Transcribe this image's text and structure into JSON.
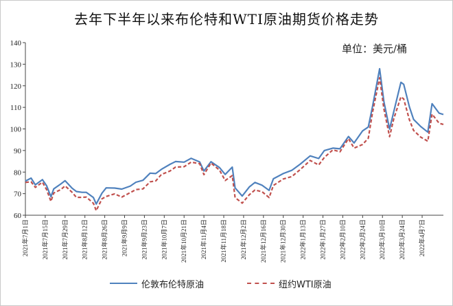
{
  "chart_data": {
    "type": "line",
    "title": "去年下半年以来布伦特和WTI原油期货价格走势",
    "unit": "单位：美元/桶",
    "ylim": [
      60,
      140
    ],
    "yticks": [
      60,
      70,
      80,
      90,
      100,
      110,
      120,
      130,
      140
    ],
    "grid": false,
    "legend_position": "bottom",
    "xlim": [
      "2021-07-01",
      "2022-04-22"
    ],
    "xticks": [
      {
        "date": "2021-07-01",
        "label": "2021年7月1日"
      },
      {
        "date": "2021-07-15",
        "label": "2021年7月15日"
      },
      {
        "date": "2021-07-29",
        "label": "2021年7月29日"
      },
      {
        "date": "2021-08-12",
        "label": "2021年8月12日"
      },
      {
        "date": "2021-08-26",
        "label": "2021年8月26日"
      },
      {
        "date": "2021-09-09",
        "label": "2021年9月9日"
      },
      {
        "date": "2021-09-23",
        "label": "2021年9月23日"
      },
      {
        "date": "2021-10-07",
        "label": "2021年10月7日"
      },
      {
        "date": "2021-10-21",
        "label": "2021年10月21日"
      },
      {
        "date": "2021-11-04",
        "label": "2021年11月4日"
      },
      {
        "date": "2021-11-18",
        "label": "2021年11月18日"
      },
      {
        "date": "2021-12-02",
        "label": "2021年12月2日"
      },
      {
        "date": "2021-12-16",
        "label": "2021年12月16日"
      },
      {
        "date": "2021-12-30",
        "label": "2021年12月30日"
      },
      {
        "date": "2022-01-13",
        "label": "2022年1月13日"
      },
      {
        "date": "2022-01-27",
        "label": "2022年1月27日"
      },
      {
        "date": "2022-02-10",
        "label": "2022年2月10日"
      },
      {
        "date": "2022-02-24",
        "label": "2022年2月24日"
      },
      {
        "date": "2022-03-10",
        "label": "2022年3月10日"
      },
      {
        "date": "2022-03-24",
        "label": "2022年3月24日"
      },
      {
        "date": "2022-04-07",
        "label": "2022年4月7日"
      }
    ],
    "series": [
      {
        "name": "伦敦布伦特原油",
        "color": "#4f81bd",
        "style": "solid",
        "points": [
          [
            "2021-07-01",
            75.8
          ],
          [
            "2021-07-05",
            77.2
          ],
          [
            "2021-07-08",
            74.1
          ],
          [
            "2021-07-13",
            76.5
          ],
          [
            "2021-07-16",
            73.6
          ],
          [
            "2021-07-19",
            68.6
          ],
          [
            "2021-07-21",
            72.2
          ],
          [
            "2021-07-26",
            74.5
          ],
          [
            "2021-07-29",
            76.0
          ],
          [
            "2021-08-03",
            72.5
          ],
          [
            "2021-08-06",
            71.0
          ],
          [
            "2021-08-10",
            70.6
          ],
          [
            "2021-08-13",
            70.6
          ],
          [
            "2021-08-18",
            68.2
          ],
          [
            "2021-08-20",
            65.2
          ],
          [
            "2021-08-24",
            70.2
          ],
          [
            "2021-08-27",
            72.7
          ],
          [
            "2021-09-02",
            72.6
          ],
          [
            "2021-09-07",
            72.1
          ],
          [
            "2021-09-13",
            73.5
          ],
          [
            "2021-09-17",
            75.3
          ],
          [
            "2021-09-22",
            76.2
          ],
          [
            "2021-09-27",
            79.5
          ],
          [
            "2021-10-01",
            79.3
          ],
          [
            "2021-10-05",
            81.3
          ],
          [
            "2021-10-11",
            83.6
          ],
          [
            "2021-10-15",
            84.9
          ],
          [
            "2021-10-21",
            84.6
          ],
          [
            "2021-10-26",
            86.4
          ],
          [
            "2021-11-01",
            84.7
          ],
          [
            "2021-11-04",
            80.5
          ],
          [
            "2021-11-09",
            84.8
          ],
          [
            "2021-11-15",
            82.1
          ],
          [
            "2021-11-19",
            78.9
          ],
          [
            "2021-11-24",
            82.3
          ],
          [
            "2021-11-26",
            72.7
          ],
          [
            "2021-12-01",
            68.9
          ],
          [
            "2021-12-06",
            73.1
          ],
          [
            "2021-12-10",
            75.2
          ],
          [
            "2021-12-15",
            73.9
          ],
          [
            "2021-12-20",
            71.5
          ],
          [
            "2021-12-23",
            76.9
          ],
          [
            "2021-12-30",
            79.3
          ],
          [
            "2022-01-05",
            80.8
          ],
          [
            "2022-01-11",
            83.7
          ],
          [
            "2022-01-18",
            87.5
          ],
          [
            "2022-01-24",
            86.3
          ],
          [
            "2022-01-28",
            90.0
          ],
          [
            "2022-02-03",
            91.1
          ],
          [
            "2022-02-08",
            90.8
          ],
          [
            "2022-02-14",
            96.5
          ],
          [
            "2022-02-18",
            93.5
          ],
          [
            "2022-02-24",
            99.1
          ],
          [
            "2022-02-28",
            100.9
          ],
          [
            "2022-03-03",
            110.5
          ],
          [
            "2022-03-08",
            127.9
          ],
          [
            "2022-03-11",
            112.7
          ],
          [
            "2022-03-15",
            99.9
          ],
          [
            "2022-03-18",
            108.0
          ],
          [
            "2022-03-23",
            121.6
          ],
          [
            "2022-03-25",
            120.7
          ],
          [
            "2022-03-29",
            110.2
          ],
          [
            "2022-04-01",
            104.4
          ],
          [
            "2022-04-06",
            101.1
          ],
          [
            "2022-04-11",
            98.5
          ],
          [
            "2022-04-14",
            111.7
          ],
          [
            "2022-04-19",
            107.3
          ],
          [
            "2022-04-22",
            106.7
          ]
        ]
      },
      {
        "name": "纽约WTI原油",
        "color": "#c0504d",
        "style": "dashed",
        "points": [
          [
            "2021-07-01",
            75.2
          ],
          [
            "2021-07-05",
            75.5
          ],
          [
            "2021-07-08",
            72.9
          ],
          [
            "2021-07-13",
            75.3
          ],
          [
            "2021-07-16",
            71.8
          ],
          [
            "2021-07-19",
            66.4
          ],
          [
            "2021-07-21",
            70.3
          ],
          [
            "2021-07-26",
            71.9
          ],
          [
            "2021-07-29",
            73.6
          ],
          [
            "2021-08-03",
            70.6
          ],
          [
            "2021-08-06",
            68.3
          ],
          [
            "2021-08-10",
            68.3
          ],
          [
            "2021-08-13",
            68.4
          ],
          [
            "2021-08-18",
            65.5
          ],
          [
            "2021-08-20",
            62.1
          ],
          [
            "2021-08-24",
            67.6
          ],
          [
            "2021-08-27",
            68.7
          ],
          [
            "2021-09-02",
            69.9
          ],
          [
            "2021-09-07",
            68.4
          ],
          [
            "2021-09-13",
            70.5
          ],
          [
            "2021-09-17",
            71.9
          ],
          [
            "2021-09-22",
            72.2
          ],
          [
            "2021-09-27",
            75.5
          ],
          [
            "2021-10-01",
            75.9
          ],
          [
            "2021-10-05",
            78.9
          ],
          [
            "2021-10-11",
            80.5
          ],
          [
            "2021-10-15",
            82.3
          ],
          [
            "2021-10-21",
            82.5
          ],
          [
            "2021-10-26",
            84.6
          ],
          [
            "2021-11-01",
            83.9
          ],
          [
            "2021-11-04",
            78.8
          ],
          [
            "2021-11-09",
            84.2
          ],
          [
            "2021-11-15",
            80.9
          ],
          [
            "2021-11-19",
            76.1
          ],
          [
            "2021-11-24",
            78.4
          ],
          [
            "2021-11-26",
            68.2
          ],
          [
            "2021-12-01",
            65.6
          ],
          [
            "2021-12-06",
            69.5
          ],
          [
            "2021-12-10",
            71.7
          ],
          [
            "2021-12-15",
            70.9
          ],
          [
            "2021-12-20",
            68.2
          ],
          [
            "2021-12-23",
            73.8
          ],
          [
            "2021-12-30",
            76.8
          ],
          [
            "2022-01-05",
            77.9
          ],
          [
            "2022-01-11",
            81.2
          ],
          [
            "2022-01-18",
            85.4
          ],
          [
            "2022-01-24",
            83.3
          ],
          [
            "2022-01-28",
            86.8
          ],
          [
            "2022-02-03",
            90.3
          ],
          [
            "2022-02-08",
            89.4
          ],
          [
            "2022-02-14",
            95.5
          ],
          [
            "2022-02-18",
            91.1
          ],
          [
            "2022-02-24",
            92.8
          ],
          [
            "2022-02-28",
            95.7
          ],
          [
            "2022-03-03",
            107.7
          ],
          [
            "2022-03-08",
            123.7
          ],
          [
            "2022-03-11",
            109.3
          ],
          [
            "2022-03-15",
            96.4
          ],
          [
            "2022-03-18",
            104.7
          ],
          [
            "2022-03-23",
            114.9
          ],
          [
            "2022-03-25",
            113.9
          ],
          [
            "2022-03-29",
            104.2
          ],
          [
            "2022-04-01",
            99.3
          ],
          [
            "2022-04-06",
            96.2
          ],
          [
            "2022-04-11",
            94.3
          ],
          [
            "2022-04-14",
            106.9
          ],
          [
            "2022-04-19",
            102.6
          ],
          [
            "2022-04-22",
            102.1
          ]
        ]
      }
    ]
  }
}
